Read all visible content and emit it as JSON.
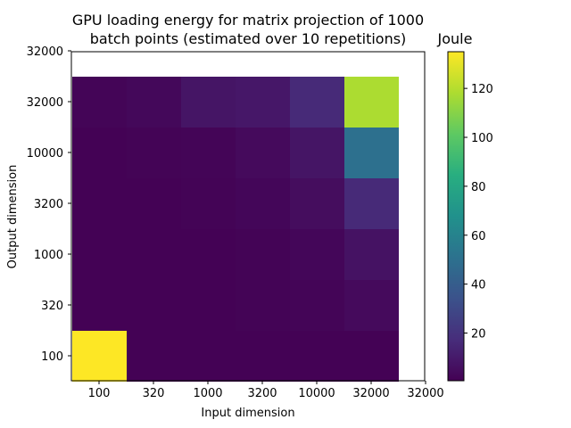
{
  "chart_data": {
    "type": "heatmap",
    "title_line1": "GPU loading energy for matrix projection of 1000",
    "title_line2": "batch points (estimated over 10 repetitions)",
    "xlabel": "Input dimension",
    "ylabel": "Output dimension",
    "colorbar_label": "Joule",
    "x_categories": [
      "100",
      "320",
      "1000",
      "3200",
      "10000",
      "32000"
    ],
    "y_categories": [
      "100",
      "320",
      "1000",
      "3200",
      "10000",
      "32000"
    ],
    "x_tick_labels": [
      "100",
      "320",
      "1000",
      "3200",
      "10000",
      "32000",
      "32000"
    ],
    "y_tick_labels": [
      "100",
      "320",
      "1000",
      "3200",
      "10000",
      "32000",
      "32000"
    ],
    "values": [
      [
        135,
        1,
        1,
        1,
        1,
        1
      ],
      [
        1,
        1,
        1,
        1.5,
        2,
        4
      ],
      [
        1,
        1,
        1,
        1.5,
        2.5,
        7
      ],
      [
        1,
        1,
        1.5,
        2.5,
        5,
        16
      ],
      [
        1,
        1.5,
        2,
        4,
        8,
        50
      ],
      [
        2,
        3,
        8,
        9,
        16,
        118
      ]
    ],
    "colorbar_range": [
      0.5,
      135
    ],
    "colorbar_ticks": [
      "20",
      "40",
      "60",
      "80",
      "100",
      "120"
    ],
    "colormap": "viridis",
    "grid": false
  }
}
